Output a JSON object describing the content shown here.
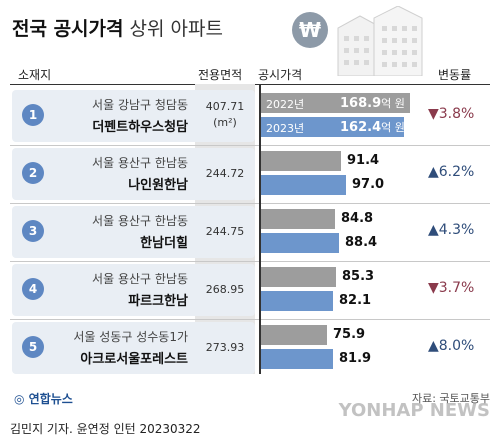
{
  "header": {
    "title_bold": "전국 공시가격",
    "title_rest": "상위 아파트",
    "currency_icon": "won-icon",
    "col_location": "소재지",
    "col_area": "전용면적",
    "col_price": "공시가격",
    "col_change": "변동률"
  },
  "colors": {
    "bar_2022": "#9d9d9d",
    "bar_2023": "#6d96cc",
    "badge": "#5e87c2",
    "down": "#8a3a4c",
    "up": "#2f4d7a"
  },
  "chart_data": {
    "type": "bar",
    "series_names": [
      "2022년",
      "2023년"
    ],
    "value_unit": "억 원",
    "area_unit": "(m²)",
    "rows": [
      {
        "rank": "1",
        "location": "서울 강남구 청담동",
        "name": "더펜트하우스청담",
        "area": "407.71",
        "v2022": 168.9,
        "v2023": 162.4,
        "label2022": "168.9",
        "label2023": "162.4",
        "change": "▼3.8%",
        "direction": "down"
      },
      {
        "rank": "2",
        "location": "서울 용산구 한남동",
        "name": "나인원한남",
        "area": "244.72",
        "v2022": 91.4,
        "v2023": 97.0,
        "label2022": "91.4",
        "label2023": "97.0",
        "change": "▲6.2%",
        "direction": "up"
      },
      {
        "rank": "3",
        "location": "서울 용산구 한남동",
        "name": "한남더힐",
        "area": "244.75",
        "v2022": 84.8,
        "v2023": 88.4,
        "label2022": "84.8",
        "label2023": "88.4",
        "change": "▲4.3%",
        "direction": "up"
      },
      {
        "rank": "4",
        "location": "서울 용산구 한남동",
        "name": "파르크한남",
        "area": "268.95",
        "v2022": 85.3,
        "v2023": 82.1,
        "label2022": "85.3",
        "label2023": "82.1",
        "change": "▼3.7%",
        "direction": "down"
      },
      {
        "rank": "5",
        "location": "서울 성동구 성수동1가",
        "name": "아크로서울포레스트",
        "area": "273.93",
        "v2022": 75.9,
        "v2023": 81.9,
        "label2022": "75.9",
        "label2023": "81.9",
        "change": "▲8.0%",
        "direction": "up"
      }
    ]
  },
  "footer": {
    "logo": "연합뉴스",
    "source": "자료: 국토교통부",
    "credit": "김민지 기자. 윤연정 인턴  20230322",
    "watermark": "YONHAP NEWS"
  }
}
